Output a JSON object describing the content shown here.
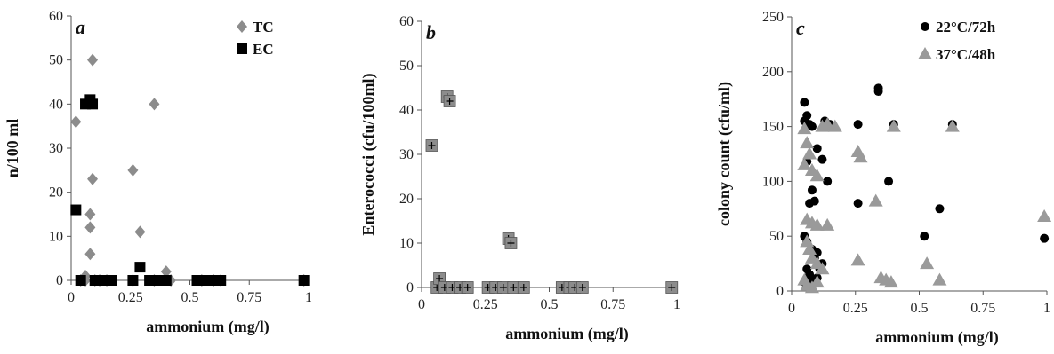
{
  "chart_data": [
    {
      "type": "scatter",
      "panel_label": "a",
      "xlabel": "ammonium (mg/l)",
      "ylabel": "n/100 ml",
      "xlim": [
        0,
        1
      ],
      "ylim": [
        0,
        60
      ],
      "xticks": [
        "0",
        "0.25",
        "0.5",
        "0.75",
        "1"
      ],
      "yticks": [
        "0",
        "10",
        "20",
        "30",
        "40",
        "50",
        "60"
      ],
      "grid": false,
      "legend_position": "top-right",
      "series": [
        {
          "name": "TC",
          "color": "#8c8c8c",
          "marker": "diamond",
          "points": [
            [
              0.02,
              36
            ],
            [
              0.04,
              0
            ],
            [
              0.06,
              0
            ],
            [
              0.06,
              1
            ],
            [
              0.08,
              12
            ],
            [
              0.08,
              6
            ],
            [
              0.08,
              15
            ],
            [
              0.09,
              23
            ],
            [
              0.09,
              50
            ],
            [
              0.1,
              0
            ],
            [
              0.12,
              0
            ],
            [
              0.15,
              0
            ],
            [
              0.26,
              25
            ],
            [
              0.26,
              0
            ],
            [
              0.29,
              11
            ],
            [
              0.35,
              40
            ],
            [
              0.35,
              0
            ],
            [
              0.4,
              2
            ],
            [
              0.42,
              0
            ],
            [
              0.55,
              0
            ],
            [
              0.6,
              0
            ],
            [
              0.63,
              0
            ],
            [
              0.98,
              0
            ]
          ]
        },
        {
          "name": "EC",
          "color": "#000000",
          "marker": "square",
          "points": [
            [
              0.02,
              16
            ],
            [
              0.04,
              0
            ],
            [
              0.06,
              40
            ],
            [
              0.08,
              41
            ],
            [
              0.09,
              40
            ],
            [
              0.1,
              0
            ],
            [
              0.12,
              0
            ],
            [
              0.14,
              0
            ],
            [
              0.17,
              0
            ],
            [
              0.26,
              0
            ],
            [
              0.29,
              3
            ],
            [
              0.33,
              0
            ],
            [
              0.35,
              0
            ],
            [
              0.38,
              0
            ],
            [
              0.4,
              0
            ],
            [
              0.53,
              0
            ],
            [
              0.56,
              0
            ],
            [
              0.58,
              0
            ],
            [
              0.6,
              0
            ],
            [
              0.63,
              0
            ],
            [
              0.98,
              0
            ]
          ]
        }
      ]
    },
    {
      "type": "scatter",
      "panel_label": "b",
      "xlabel": "ammonium (mg/l)",
      "ylabel": "Enterococci (cfu/100ml)",
      "xlim": [
        0,
        1
      ],
      "ylim": [
        0,
        60
      ],
      "xticks": [
        "0",
        "0.25",
        "0.5",
        "0.75",
        "1"
      ],
      "yticks": [
        "0",
        "10",
        "20",
        "30",
        "40",
        "50",
        "60"
      ],
      "grid": false,
      "series": [
        {
          "name": "",
          "color": "#8c8c8c",
          "marker": "square-plus",
          "points": [
            [
              0.04,
              32
            ],
            [
              0.06,
              0
            ],
            [
              0.07,
              2
            ],
            [
              0.09,
              0
            ],
            [
              0.1,
              43
            ],
            [
              0.11,
              42
            ],
            [
              0.12,
              0
            ],
            [
              0.15,
              0
            ],
            [
              0.18,
              0
            ],
            [
              0.26,
              0
            ],
            [
              0.29,
              0
            ],
            [
              0.32,
              0
            ],
            [
              0.34,
              11
            ],
            [
              0.35,
              10
            ],
            [
              0.36,
              0
            ],
            [
              0.4,
              0
            ],
            [
              0.55,
              0
            ],
            [
              0.58,
              0
            ],
            [
              0.6,
              0
            ],
            [
              0.63,
              0
            ],
            [
              0.98,
              0
            ]
          ]
        }
      ]
    },
    {
      "type": "scatter",
      "panel_label": "c",
      "xlabel": "ammonium (mg/l)",
      "ylabel": "colony count (cfu/ml)",
      "xlim": [
        0,
        1
      ],
      "ylim": [
        0,
        250
      ],
      "xticks": [
        "0",
        "0.25",
        "0.5",
        "0.75",
        "1"
      ],
      "yticks": [
        "0",
        "50",
        "100",
        "150",
        "200",
        "250"
      ],
      "grid": false,
      "legend_position": "top-right",
      "series": [
        {
          "name": "22°C/72h",
          "color": "#000000",
          "marker": "circle",
          "points": [
            [
              0.05,
              172
            ],
            [
              0.05,
              155
            ],
            [
              0.06,
              160
            ],
            [
              0.07,
              152
            ],
            [
              0.08,
              150
            ],
            [
              0.1,
              130
            ],
            [
              0.12,
              120
            ],
            [
              0.13,
              155
            ],
            [
              0.15,
              152
            ],
            [
              0.06,
              118
            ],
            [
              0.08,
              92
            ],
            [
              0.09,
              82
            ],
            [
              0.07,
              80
            ],
            [
              0.05,
              50
            ],
            [
              0.06,
              45
            ],
            [
              0.08,
              38
            ],
            [
              0.09,
              30
            ],
            [
              0.1,
              35
            ],
            [
              0.06,
              20
            ],
            [
              0.07,
              15
            ],
            [
              0.08,
              10
            ],
            [
              0.1,
              12
            ],
            [
              0.11,
              20
            ],
            [
              0.12,
              25
            ],
            [
              0.05,
              8
            ],
            [
              0.14,
              100
            ],
            [
              0.26,
              152
            ],
            [
              0.26,
              80
            ],
            [
              0.34,
              185
            ],
            [
              0.34,
              182
            ],
            [
              0.38,
              100
            ],
            [
              0.4,
              152
            ],
            [
              0.52,
              50
            ],
            [
              0.58,
              75
            ],
            [
              0.63,
              152
            ],
            [
              0.99,
              48
            ]
          ]
        },
        {
          "name": "37°C/48h",
          "color": "#9a9a9a",
          "marker": "triangle",
          "points": [
            [
              0.05,
              148
            ],
            [
              0.06,
              135
            ],
            [
              0.07,
              125
            ],
            [
              0.05,
              115
            ],
            [
              0.08,
              110
            ],
            [
              0.1,
              105
            ],
            [
              0.06,
              65
            ],
            [
              0.08,
              62
            ],
            [
              0.1,
              60
            ],
            [
              0.14,
              60
            ],
            [
              0.06,
              45
            ],
            [
              0.07,
              38
            ],
            [
              0.08,
              30
            ],
            [
              0.1,
              25
            ],
            [
              0.12,
              20
            ],
            [
              0.05,
              10
            ],
            [
              0.06,
              5
            ],
            [
              0.08,
              3
            ],
            [
              0.1,
              8
            ],
            [
              0.12,
              150
            ],
            [
              0.14,
              152
            ],
            [
              0.17,
              150
            ],
            [
              0.26,
              127
            ],
            [
              0.27,
              122
            ],
            [
              0.26,
              28
            ],
            [
              0.33,
              82
            ],
            [
              0.35,
              12
            ],
            [
              0.37,
              10
            ],
            [
              0.39,
              8
            ],
            [
              0.4,
              150
            ],
            [
              0.53,
              25
            ],
            [
              0.58,
              10
            ],
            [
              0.63,
              150
            ],
            [
              0.99,
              68
            ]
          ]
        }
      ]
    }
  ]
}
